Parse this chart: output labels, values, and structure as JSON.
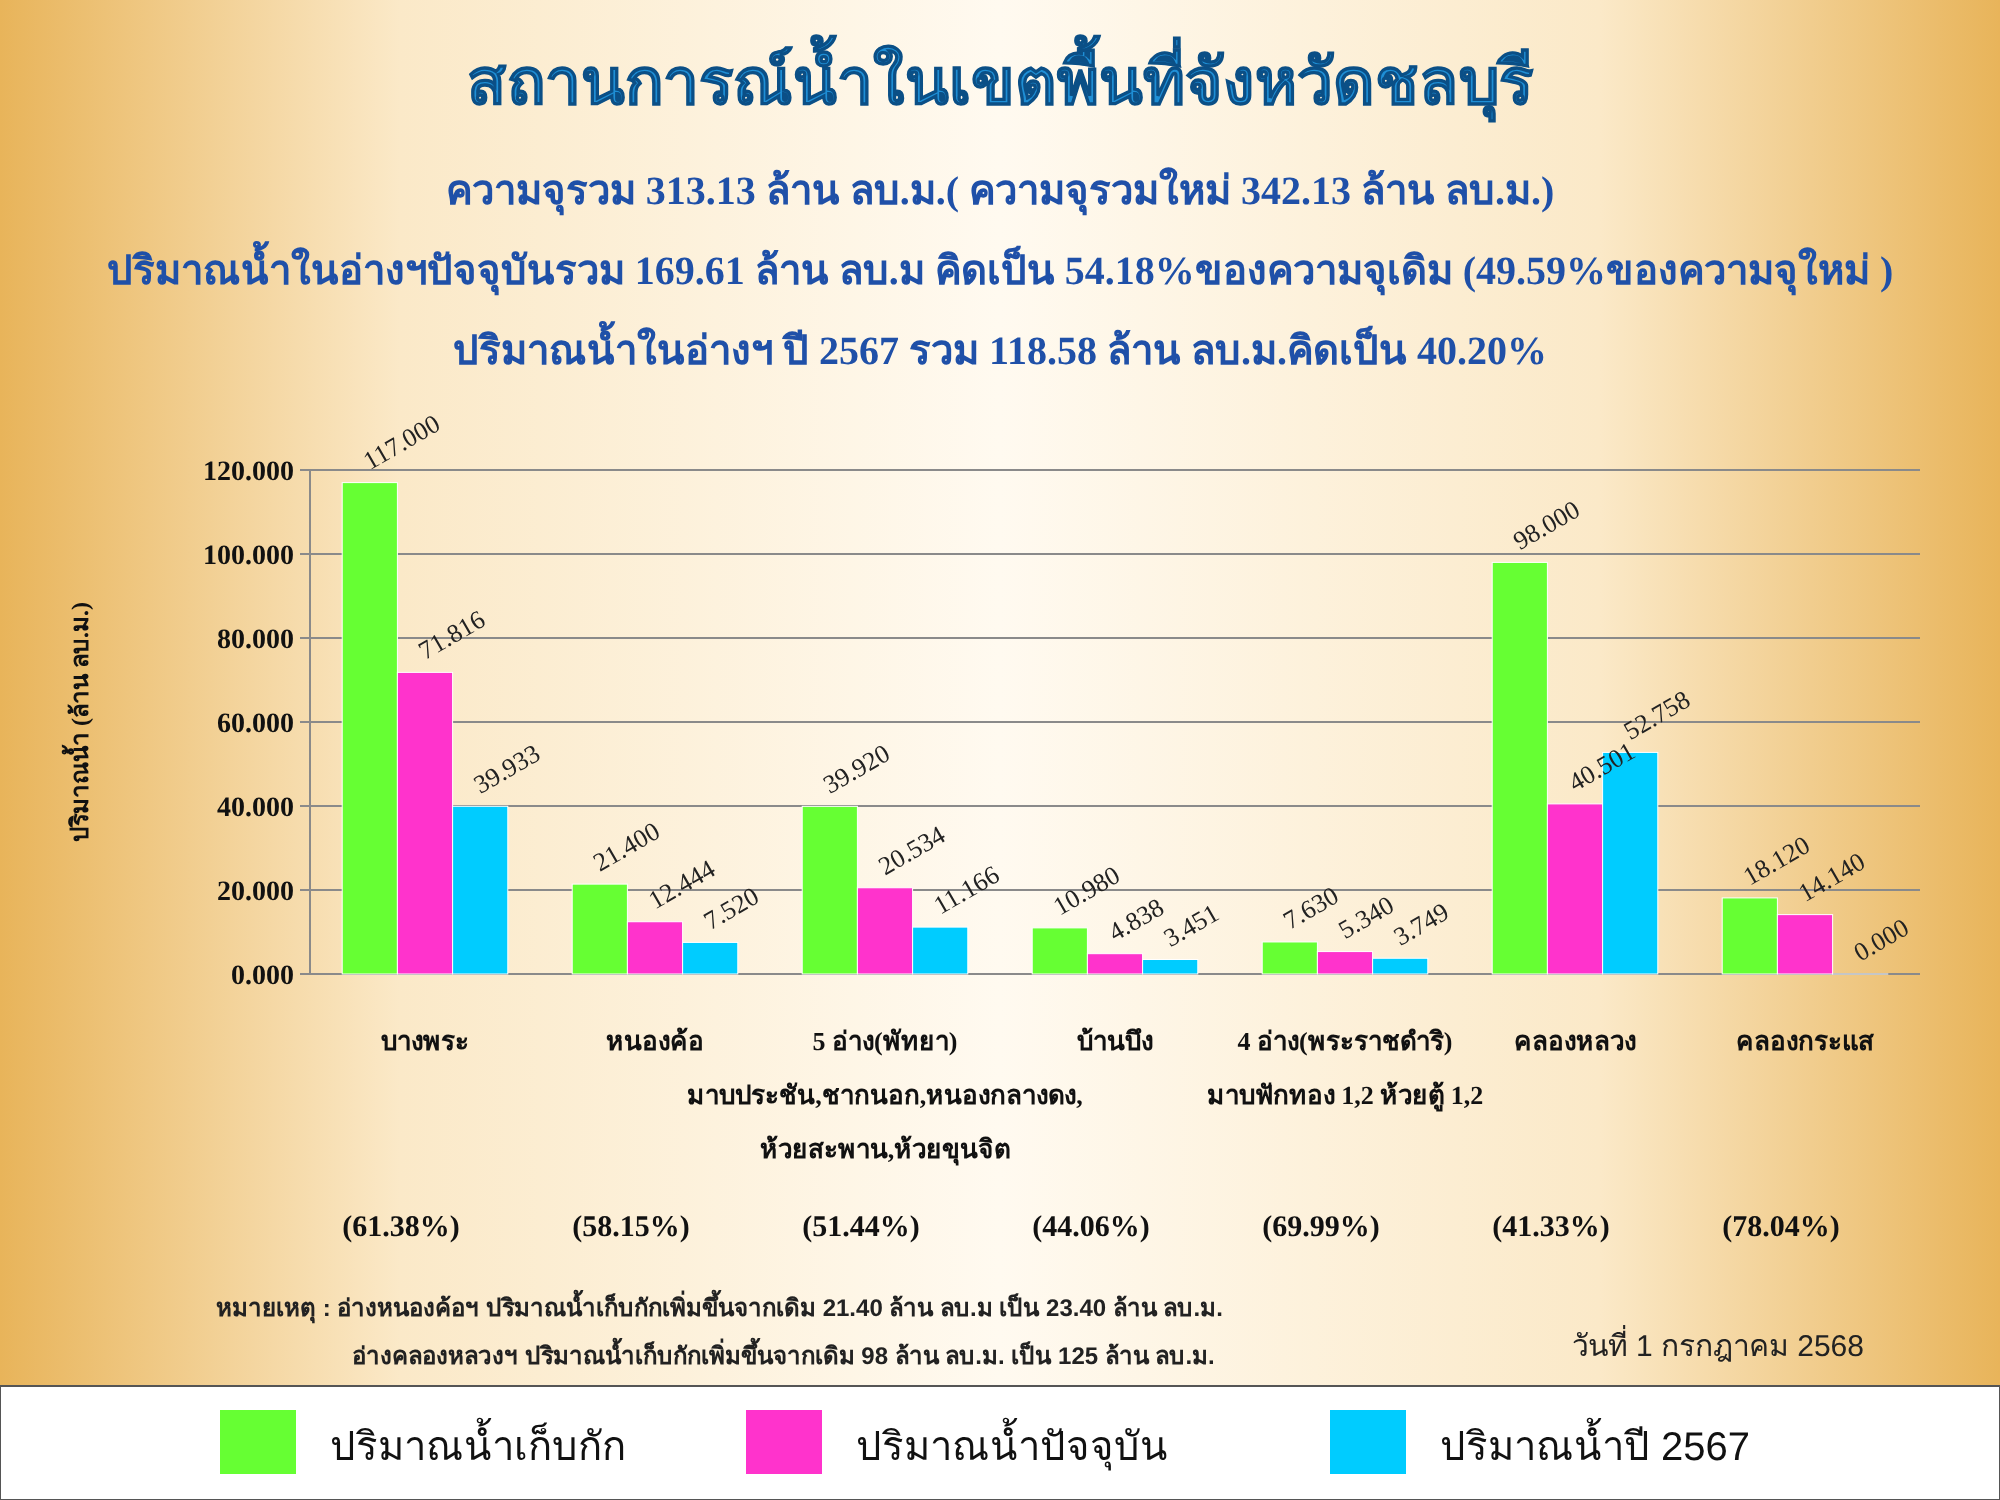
{
  "chart_data": {
    "type": "bar",
    "title": "สถานการณ์น้ำในเขตพื้นที่จังหวัดชลบุรี",
    "subtitle": "ความจุรวม  313.13 ล้าน ลบ.ม.( ความจุรวมใหม่ 342.13 ล้าน ลบ.ม.)\nปริมาณน้ำในอ่างฯปัจจุบันรวม 169.61 ล้าน ลบ.ม คิดเป็น 54.18%ของความจุเดิม (49.59%ของความจุใหม่ )\nปริมาณน้ำในอ่างฯ ปี 2567 รวม 118.58 ล้าน ลบ.ม.คิดเป็น 40.20%",
    "ylabel": "ปริมาณน้ำ (ล้าน ลบ.ม.)",
    "categories": [
      "บางพระ",
      "หนองค้อ",
      "5 อ่าง(พัทยา)\nมาบประชัน,ชากนอก,หนองกลางดง,\nห้วยสะพาน,ห้วยขุนจิต",
      "บ้านบึง",
      "4 อ่าง(พระราชดำริ)\nมาบฟักทอง 1,2 ห้วยตู้ 1,2",
      "คลองหลวง",
      "คลองกระแส"
    ],
    "series": [
      {
        "name": "ปริมาณน้ำเก็บกัก",
        "color": "#66ff33",
        "values": [
          117,
          21.4,
          39.92,
          10.98,
          7.63,
          98,
          18.12
        ],
        "value_labels": [
          "117.000",
          "21.400",
          "39.920",
          "10.980",
          "7.630",
          "98.000",
          "18.120"
        ]
      },
      {
        "name": "ปริมาณน้ำปัจจุบัน",
        "color": "#ff33cc",
        "values": [
          71.816,
          12.444,
          20.534,
          4.838,
          5.34,
          40.501,
          14.14
        ],
        "value_labels": [
          "71.816",
          "12.444",
          "20.534",
          "4.838",
          "5.340",
          "40.501",
          "14.140"
        ]
      },
      {
        "name": "ปริมาณน้ำปี 2567",
        "color": "#00ccff",
        "values": [
          39.933,
          7.52,
          11.166,
          3.451,
          3.749,
          52.758,
          0
        ],
        "value_labels": [
          "39.933",
          "7.520",
          "11.166",
          "3.451",
          "3.749",
          "52.758",
          "0.000"
        ]
      }
    ],
    "ylim": [
      0,
      120
    ],
    "yticks": [
      {
        "value": 0,
        "label": "0.000"
      },
      {
        "value": 20,
        "label": "20.000"
      },
      {
        "value": 40,
        "label": "40.000"
      },
      {
        "value": 60,
        "label": "60.000"
      },
      {
        "value": 80,
        "label": "80.000"
      },
      {
        "value": 100,
        "label": "100.000"
      },
      {
        "value": 120,
        "label": "120.000"
      }
    ],
    "grid": "y",
    "legend": "bottom",
    "annotations": [
      "(61.38%)",
      "(58.15%)",
      "(51.44%)",
      "(44.06%)",
      "(69.99%)",
      "(41.33%)",
      "(78.04%)",
      "หมายเหตุ :  อ่างหนองค้อฯ ปริมาณน้ำเก็บกักเพิ่มขึ้นจากเดิม 21.40 ล้าน ลบ.ม เป็น 23.40 ล้าน ลบ.ม.\nอ่างคลองหลวงฯ ปริมาณน้ำเก็บกักเพิ่มขึ้นจากเดิม 98 ล้าน ลบ.ม. เป็น 125 ล้าน ลบ.ม.",
      "วันที่ 1 กรกฎาคม 2568"
    ]
  }
}
